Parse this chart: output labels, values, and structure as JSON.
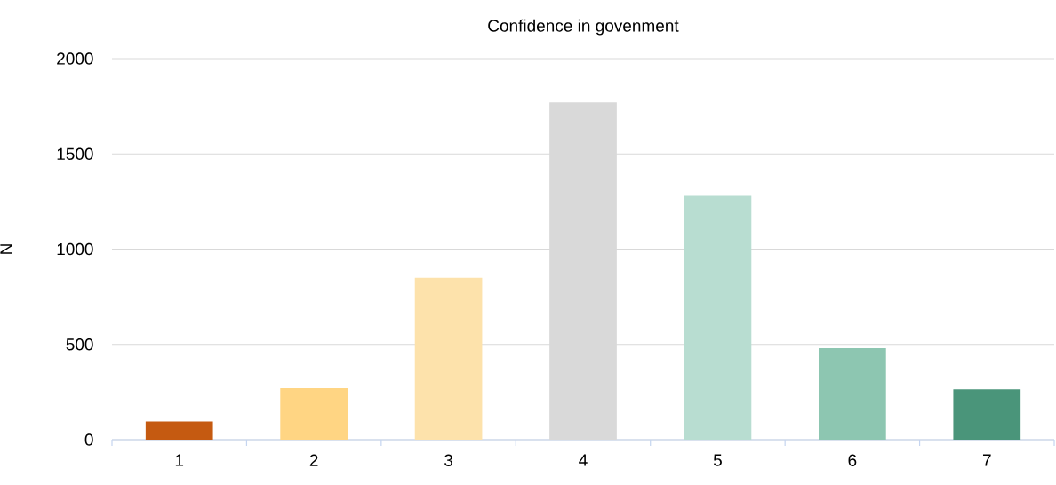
{
  "chart_data": {
    "type": "bar",
    "title": "Confidence in govenment",
    "ylabel": "N",
    "categories": [
      "1",
      "2",
      "3",
      "4",
      "5",
      "6",
      "7"
    ],
    "values": [
      95,
      270,
      850,
      1770,
      1280,
      480,
      265
    ],
    "colors": [
      "#c55a11",
      "#ffd583",
      "#fde2ab",
      "#d9d9d9",
      "#b8ddd1",
      "#8dc6b1",
      "#4a957a"
    ],
    "ylim": [
      0,
      2000
    ],
    "yticks": [
      0,
      500,
      1000,
      1500,
      2000
    ],
    "grid": "y"
  }
}
